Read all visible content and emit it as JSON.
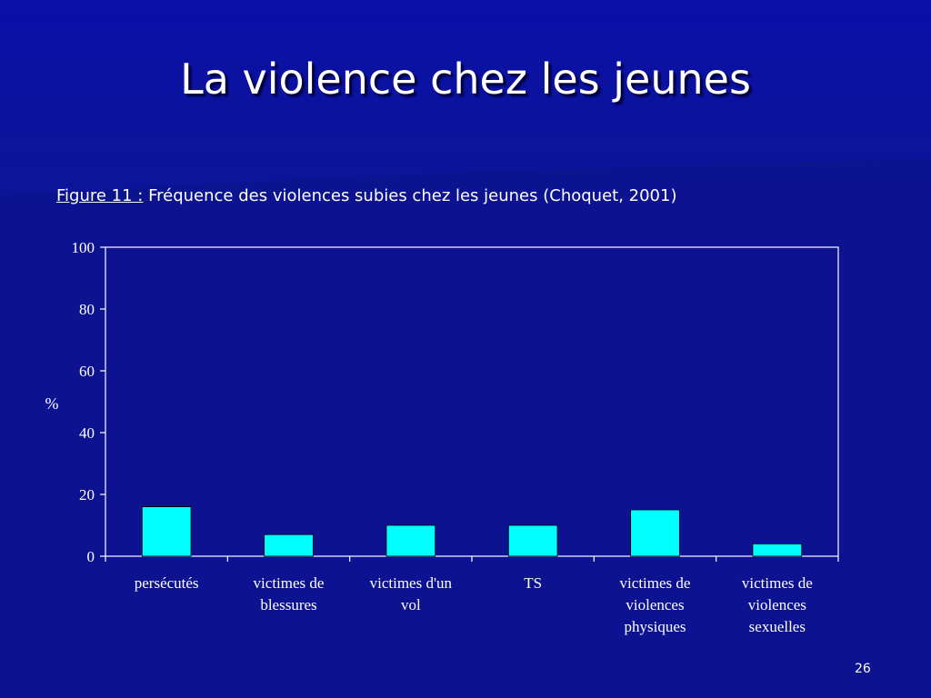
{
  "slide": {
    "title": "La violence chez les jeunes",
    "caption_label": "Figure 11 :",
    "caption_text": " Fréquence des violences subies chez les jeunes (Choquet, 2001)",
    "page_number": "26"
  },
  "colors": {
    "background": "#0c1290",
    "bar_fill": "#00ffff",
    "axis": "#ffffff",
    "text": "#ffffff"
  },
  "chart_data": {
    "type": "bar",
    "ylabel": "%",
    "xlabel": "",
    "ylim": [
      0,
      100
    ],
    "yticks": [
      0,
      20,
      40,
      60,
      80,
      100
    ],
    "grid": false,
    "categories": [
      [
        "persécutés"
      ],
      [
        "victimes de",
        "blessures"
      ],
      [
        "victimes d'un",
        "vol"
      ],
      [
        "TS"
      ],
      [
        "victimes de",
        "violences",
        "physiques"
      ],
      [
        "victimes de",
        "violences",
        "sexuelles"
      ]
    ],
    "values": [
      16,
      7,
      10,
      10,
      15,
      4
    ]
  }
}
